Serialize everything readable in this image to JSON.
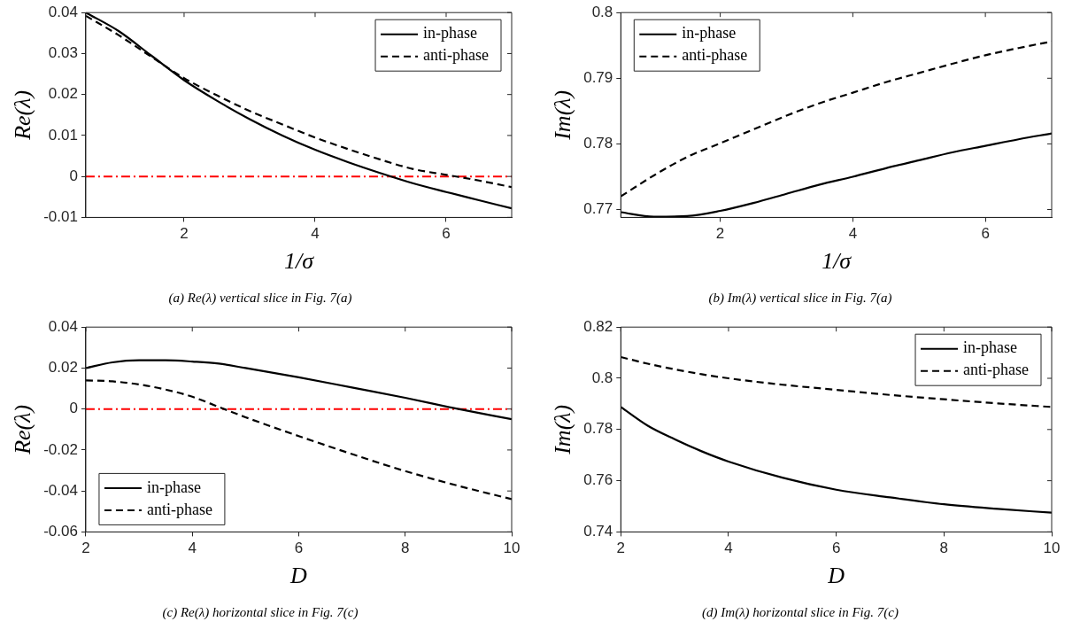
{
  "chart_data": [
    {
      "type": "line",
      "title": "(a) Re(λ) vertical slice in Fig. 7(a)",
      "xlabel": "1/σ",
      "ylabel": "Re(λ)",
      "xlim": [
        0.5,
        7
      ],
      "xticks": [
        2,
        4,
        6
      ],
      "ylim": [
        -0.01,
        0.04
      ],
      "yticks": [
        -0.01,
        0,
        0.01,
        0.02,
        0.03,
        0.04
      ],
      "legend": "top right",
      "x": [
        0.5,
        1,
        1.5,
        2,
        2.5,
        3,
        3.5,
        4,
        4.5,
        5,
        5.5,
        6,
        6.5,
        7
      ],
      "series": [
        {
          "name": "in-phase",
          "color": "#000000",
          "line_style": "solid",
          "values": [
            0.04,
            0.0355,
            0.0295,
            0.0235,
            0.0185,
            0.014,
            0.01,
            0.0065,
            0.0035,
            0.0008,
            -0.0017,
            -0.0038,
            -0.0058,
            -0.0078
          ]
        },
        {
          "name": "anti-phase",
          "color": "#000000",
          "line_style": "dashed",
          "values": [
            0.0392,
            0.0345,
            0.0292,
            0.024,
            0.0198,
            0.016,
            0.0127,
            0.0095,
            0.0067,
            0.0041,
            0.0018,
            0.0004,
            -0.001,
            -0.0026
          ]
        }
      ],
      "ref_lines": [
        {
          "axis": "y",
          "value": 0,
          "color": "#ff0000",
          "line_style": "dashdot"
        }
      ]
    },
    {
      "type": "line",
      "title": "(b) Im(λ) vertical slice in Fig. 7(a)",
      "xlabel": "1/σ",
      "ylabel": "Im(λ)",
      "xlim": [
        0.5,
        7
      ],
      "xticks": [
        2,
        4,
        6
      ],
      "ylim": [
        0.7688,
        0.8
      ],
      "yticks": [
        0.77,
        0.78,
        0.79,
        0.8
      ],
      "legend": "top left",
      "x": [
        0.5,
        1,
        1.5,
        2,
        2.5,
        3,
        3.5,
        4,
        4.5,
        5,
        5.5,
        6,
        6.5,
        7
      ],
      "series": [
        {
          "name": "in-phase",
          "color": "#000000",
          "line_style": "solid",
          "values": [
            0.7696,
            0.7689,
            0.769,
            0.7698,
            0.771,
            0.7724,
            0.7738,
            0.775,
            0.7763,
            0.7775,
            0.7787,
            0.7797,
            0.7807,
            0.7816
          ]
        },
        {
          "name": "anti-phase",
          "color": "#000000",
          "line_style": "dashed",
          "values": [
            0.772,
            0.7752,
            0.778,
            0.7801,
            0.7822,
            0.7843,
            0.7862,
            0.7878,
            0.7894,
            0.7908,
            0.7922,
            0.7935,
            0.7946,
            0.7956
          ]
        }
      ]
    },
    {
      "type": "line",
      "title": "(c) Re(λ) horizontal slice in Fig. 7(c)",
      "xlabel": "D",
      "ylabel": "Re(λ)",
      "xlim": [
        2,
        10
      ],
      "xticks": [
        2,
        4,
        6,
        8,
        10
      ],
      "ylim": [
        -0.06,
        0.04
      ],
      "yticks": [
        -0.06,
        -0.04,
        -0.02,
        0,
        0.02,
        0.04
      ],
      "legend": "bottom left",
      "x": [
        2,
        2.5,
        3,
        3.5,
        4,
        4.5,
        5,
        6,
        7,
        8,
        9,
        10
      ],
      "series": [
        {
          "name": "in-phase",
          "color": "#000000",
          "line_style": "solid",
          "values": [
            0.02,
            0.0228,
            0.0238,
            0.0238,
            0.0232,
            0.0222,
            0.02,
            0.0155,
            0.0105,
            0.0055,
            0.0,
            -0.005
          ]
        },
        {
          "name": "anti-phase",
          "color": "#000000",
          "line_style": "dashed",
          "values": [
            0.014,
            0.0135,
            0.012,
            0.0095,
            0.006,
            0.001,
            -0.004,
            -0.0132,
            -0.022,
            -0.0303,
            -0.0375,
            -0.044
          ]
        }
      ],
      "ref_lines": [
        {
          "axis": "y",
          "value": 0,
          "color": "#ff0000",
          "line_style": "dashdot"
        }
      ]
    },
    {
      "type": "line",
      "title": "(d) Im(λ) horizontal slice in Fig. 7(c)",
      "xlabel": "D",
      "ylabel": "Im(λ)",
      "xlim": [
        2,
        10
      ],
      "xticks": [
        2,
        4,
        6,
        8,
        10
      ],
      "ylim": [
        0.74,
        0.82
      ],
      "yticks": [
        0.74,
        0.76,
        0.78,
        0.8,
        0.82
      ],
      "legend": "top right",
      "x": [
        2,
        2.5,
        3,
        3.5,
        4,
        5,
        6,
        7,
        8,
        9,
        10
      ],
      "series": [
        {
          "name": "in-phase",
          "color": "#000000",
          "line_style": "solid",
          "values": [
            0.7888,
            0.7815,
            0.7762,
            0.7715,
            0.7675,
            0.7612,
            0.7565,
            0.7535,
            0.7508,
            0.749,
            0.7475
          ]
        },
        {
          "name": "anti-phase",
          "color": "#000000",
          "line_style": "dashed",
          "values": [
            0.8083,
            0.8057,
            0.8035,
            0.8016,
            0.8,
            0.7975,
            0.7955,
            0.7935,
            0.7918,
            0.7902,
            0.7888
          ]
        }
      ]
    }
  ]
}
